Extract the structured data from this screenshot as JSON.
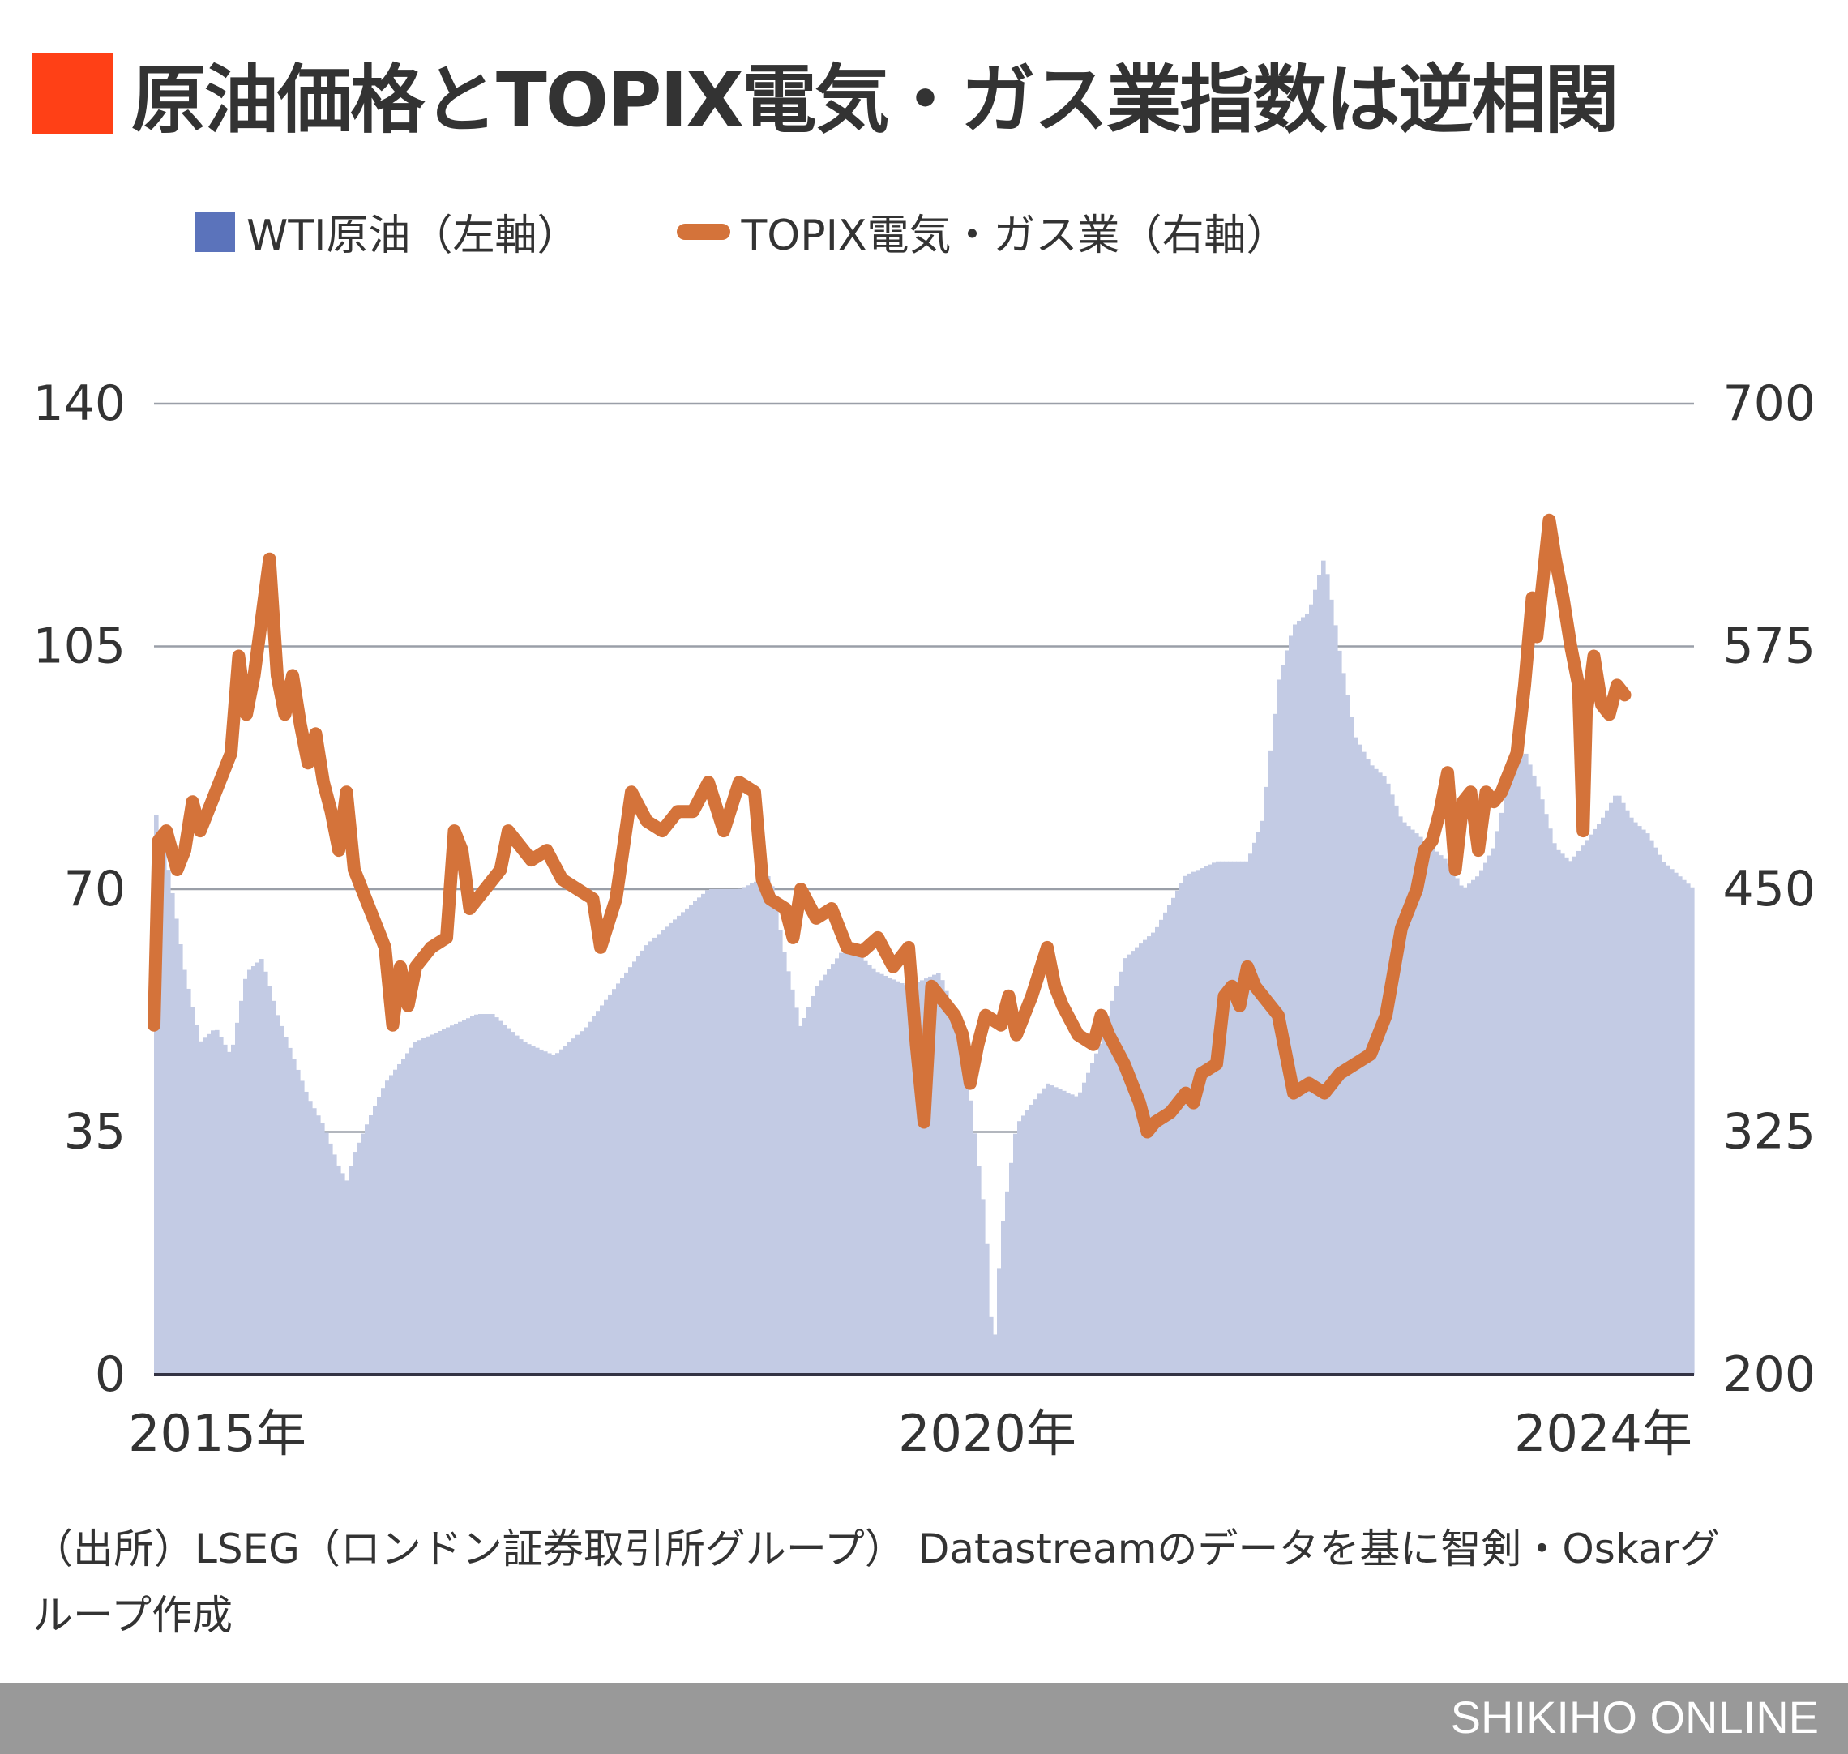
{
  "title": "原油価格とTOPIX電気・ガス業指数は逆相関",
  "legend": {
    "bar_label": "WTI原油（左軸）",
    "line_label": "TOPIX電気・ガス業（右軸）"
  },
  "source_text": "（出所）LSEG（ロンドン証券取引所グループ） Datastreamのデータを基に智剣・Oskarグループ作成",
  "footer": "SHIKIHO ONLINE",
  "colors": {
    "accent": "#ff4016",
    "bars": "#c3cbe4",
    "line": "#d4733a",
    "legend_bar": "#5b73bb"
  },
  "chart_data": {
    "type": "bar+line",
    "x_ticks": [
      {
        "label": "2015年",
        "t": 2015.0
      },
      {
        "label": "2020年",
        "t": 2020.0
      },
      {
        "label": "2024年",
        "t": 2024.0
      }
    ],
    "x_range": [
      2014.8,
      2024.8
    ],
    "left_axis": {
      "ticks": [
        "0",
        "35",
        "70",
        "105",
        "140"
      ],
      "range": [
        0,
        140
      ]
    },
    "right_axis": {
      "ticks": [
        "200",
        "325",
        "450",
        "575",
        "700"
      ],
      "range": [
        200,
        700
      ]
    },
    "series": [
      {
        "name": "WTI原油（左軸）",
        "axis": "left",
        "kind": "bar",
        "points": [
          [
            2014.8,
            82
          ],
          [
            2014.9,
            72
          ],
          [
            2015.0,
            58
          ],
          [
            2015.1,
            48
          ],
          [
            2015.2,
            50
          ],
          [
            2015.3,
            46
          ],
          [
            2015.4,
            58
          ],
          [
            2015.5,
            60
          ],
          [
            2015.6,
            52
          ],
          [
            2015.7,
            46
          ],
          [
            2015.8,
            40
          ],
          [
            2015.9,
            36
          ],
          [
            2016.0,
            30
          ],
          [
            2016.05,
            28
          ],
          [
            2016.1,
            32
          ],
          [
            2016.3,
            42
          ],
          [
            2016.5,
            48
          ],
          [
            2016.7,
            50
          ],
          [
            2016.9,
            52
          ],
          [
            2017.0,
            52
          ],
          [
            2017.2,
            48
          ],
          [
            2017.4,
            46
          ],
          [
            2017.6,
            50
          ],
          [
            2017.8,
            56
          ],
          [
            2018.0,
            62
          ],
          [
            2018.2,
            66
          ],
          [
            2018.4,
            70
          ],
          [
            2018.6,
            70
          ],
          [
            2018.8,
            72
          ],
          [
            2018.9,
            60
          ],
          [
            2019.0,
            50
          ],
          [
            2019.1,
            56
          ],
          [
            2019.3,
            62
          ],
          [
            2019.5,
            58
          ],
          [
            2019.7,
            56
          ],
          [
            2019.9,
            58
          ],
          [
            2020.0,
            52
          ],
          [
            2020.1,
            40
          ],
          [
            2020.2,
            22
          ],
          [
            2020.25,
            2
          ],
          [
            2020.3,
            20
          ],
          [
            2020.4,
            36
          ],
          [
            2020.6,
            42
          ],
          [
            2020.8,
            40
          ],
          [
            2020.95,
            48
          ],
          [
            2021.1,
            60
          ],
          [
            2021.3,
            64
          ],
          [
            2021.5,
            72
          ],
          [
            2021.7,
            74
          ],
          [
            2021.9,
            74
          ],
          [
            2022.0,
            80
          ],
          [
            2022.1,
            100
          ],
          [
            2022.2,
            108
          ],
          [
            2022.3,
            110
          ],
          [
            2022.4,
            118
          ],
          [
            2022.5,
            104
          ],
          [
            2022.6,
            92
          ],
          [
            2022.7,
            88
          ],
          [
            2022.8,
            86
          ],
          [
            2022.9,
            80
          ],
          [
            2023.0,
            78
          ],
          [
            2023.2,
            74
          ],
          [
            2023.3,
            70
          ],
          [
            2023.4,
            72
          ],
          [
            2023.5,
            76
          ],
          [
            2023.6,
            86
          ],
          [
            2023.7,
            90
          ],
          [
            2023.8,
            84
          ],
          [
            2023.9,
            76
          ],
          [
            2024.0,
            74
          ],
          [
            2024.2,
            80
          ],
          [
            2024.3,
            84
          ],
          [
            2024.4,
            80
          ],
          [
            2024.5,
            78
          ],
          [
            2024.6,
            74
          ],
          [
            2024.7,
            72
          ],
          [
            2024.8,
            70
          ]
        ]
      },
      {
        "name": "TOPIX電気・ガス業（右軸）",
        "axis": "right",
        "kind": "line",
        "points": [
          [
            2014.8,
            380
          ],
          [
            2014.83,
            475
          ],
          [
            2014.88,
            480
          ],
          [
            2014.95,
            460
          ],
          [
            2015.0,
            470
          ],
          [
            2015.05,
            495
          ],
          [
            2015.1,
            480
          ],
          [
            2015.2,
            500
          ],
          [
            2015.3,
            520
          ],
          [
            2015.35,
            570
          ],
          [
            2015.4,
            540
          ],
          [
            2015.45,
            560
          ],
          [
            2015.5,
            590
          ],
          [
            2015.55,
            620
          ],
          [
            2015.6,
            560
          ],
          [
            2015.65,
            540
          ],
          [
            2015.7,
            560
          ],
          [
            2015.75,
            535
          ],
          [
            2015.8,
            515
          ],
          [
            2015.85,
            530
          ],
          [
            2015.9,
            505
          ],
          [
            2015.95,
            490
          ],
          [
            2016.0,
            470
          ],
          [
            2016.05,
            500
          ],
          [
            2016.1,
            460
          ],
          [
            2016.2,
            440
          ],
          [
            2016.3,
            420
          ],
          [
            2016.35,
            380
          ],
          [
            2016.4,
            410
          ],
          [
            2016.45,
            390
          ],
          [
            2016.5,
            410
          ],
          [
            2016.6,
            420
          ],
          [
            2016.7,
            425
          ],
          [
            2016.75,
            480
          ],
          [
            2016.8,
            470
          ],
          [
            2016.85,
            440
          ],
          [
            2016.95,
            450
          ],
          [
            2017.05,
            460
          ],
          [
            2017.1,
            480
          ],
          [
            2017.15,
            475
          ],
          [
            2017.25,
            465
          ],
          [
            2017.35,
            470
          ],
          [
            2017.45,
            455
          ],
          [
            2017.55,
            450
          ],
          [
            2017.65,
            445
          ],
          [
            2017.7,
            420
          ],
          [
            2017.8,
            445
          ],
          [
            2017.9,
            500
          ],
          [
            2018.0,
            485
          ],
          [
            2018.1,
            480
          ],
          [
            2018.2,
            490
          ],
          [
            2018.3,
            490
          ],
          [
            2018.4,
            505
          ],
          [
            2018.5,
            480
          ],
          [
            2018.6,
            505
          ],
          [
            2018.7,
            500
          ],
          [
            2018.75,
            455
          ],
          [
            2018.8,
            445
          ],
          [
            2018.9,
            440
          ],
          [
            2018.95,
            425
          ],
          [
            2019.0,
            450
          ],
          [
            2019.1,
            435
          ],
          [
            2019.2,
            440
          ],
          [
            2019.3,
            420
          ],
          [
            2019.4,
            418
          ],
          [
            2019.5,
            425
          ],
          [
            2019.6,
            410
          ],
          [
            2019.7,
            420
          ],
          [
            2019.75,
            370
          ],
          [
            2019.8,
            330
          ],
          [
            2019.85,
            400
          ],
          [
            2019.9,
            395
          ],
          [
            2020.0,
            385
          ],
          [
            2020.05,
            375
          ],
          [
            2020.1,
            350
          ],
          [
            2020.15,
            370
          ],
          [
            2020.2,
            385
          ],
          [
            2020.3,
            380
          ],
          [
            2020.35,
            395
          ],
          [
            2020.4,
            375
          ],
          [
            2020.5,
            395
          ],
          [
            2020.6,
            420
          ],
          [
            2020.65,
            400
          ],
          [
            2020.7,
            390
          ],
          [
            2020.8,
            375
          ],
          [
            2020.9,
            370
          ],
          [
            2020.95,
            385
          ],
          [
            2021.0,
            375
          ],
          [
            2021.1,
            360
          ],
          [
            2021.2,
            340
          ],
          [
            2021.25,
            325
          ],
          [
            2021.3,
            330
          ],
          [
            2021.4,
            335
          ],
          [
            2021.5,
            345
          ],
          [
            2021.55,
            340
          ],
          [
            2021.6,
            355
          ],
          [
            2021.7,
            360
          ],
          [
            2021.75,
            395
          ],
          [
            2021.8,
            400
          ],
          [
            2021.85,
            390
          ],
          [
            2021.9,
            410
          ],
          [
            2021.95,
            400
          ],
          [
            2022.0,
            395
          ],
          [
            2022.1,
            385
          ],
          [
            2022.2,
            345
          ],
          [
            2022.3,
            350
          ],
          [
            2022.4,
            345
          ],
          [
            2022.5,
            355
          ],
          [
            2022.6,
            360
          ],
          [
            2022.7,
            365
          ],
          [
            2022.8,
            385
          ],
          [
            2022.9,
            430
          ],
          [
            2022.95,
            440
          ],
          [
            2023.0,
            450
          ],
          [
            2023.05,
            470
          ],
          [
            2023.1,
            475
          ],
          [
            2023.15,
            490
          ],
          [
            2023.2,
            510
          ],
          [
            2023.25,
            460
          ],
          [
            2023.3,
            495
          ],
          [
            2023.35,
            500
          ],
          [
            2023.4,
            470
          ],
          [
            2023.45,
            500
          ],
          [
            2023.5,
            495
          ],
          [
            2023.55,
            500
          ],
          [
            2023.6,
            510
          ],
          [
            2023.65,
            520
          ],
          [
            2023.7,
            555
          ],
          [
            2023.75,
            600
          ],
          [
            2023.78,
            580
          ],
          [
            2023.82,
            610
          ],
          [
            2023.86,
            640
          ],
          [
            2023.9,
            620
          ],
          [
            2023.95,
            600
          ],
          [
            2024.0,
            575
          ],
          [
            2024.05,
            555
          ],
          [
            2024.08,
            480
          ],
          [
            2024.1,
            540
          ],
          [
            2024.15,
            570
          ],
          [
            2024.2,
            545
          ],
          [
            2024.25,
            540
          ],
          [
            2024.3,
            555
          ],
          [
            2024.35,
            550
          ]
        ]
      }
    ]
  }
}
